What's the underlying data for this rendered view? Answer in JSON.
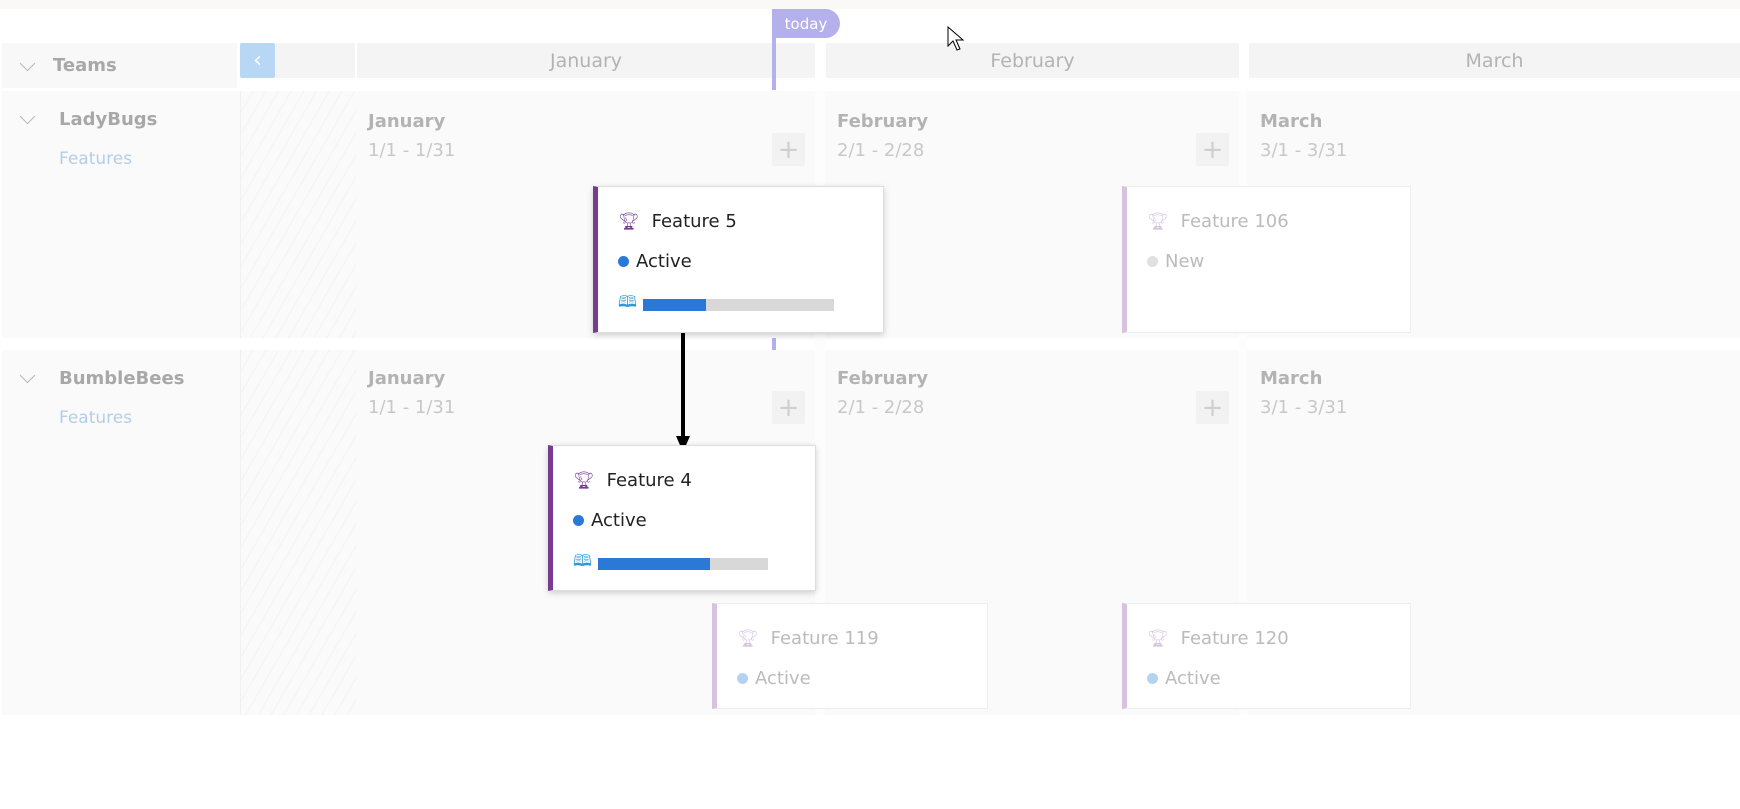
{
  "header": {
    "teams_label": "Teams",
    "today_label": "today",
    "months": [
      "January",
      "February",
      "March"
    ]
  },
  "teams": [
    {
      "name": "LadyBugs",
      "link": "Features",
      "months": [
        {
          "name": "January",
          "range": "1/1 - 1/31"
        },
        {
          "name": "February",
          "range": "2/1 - 2/28"
        },
        {
          "name": "March",
          "range": "3/1 - 3/31"
        }
      ]
    },
    {
      "name": "BumbleBees",
      "link": "Features",
      "months": [
        {
          "name": "January",
          "range": "1/1 - 1/31"
        },
        {
          "name": "February",
          "range": "2/1 - 2/28"
        },
        {
          "name": "March",
          "range": "3/1 - 3/31"
        }
      ]
    }
  ],
  "cards": [
    {
      "title": "Feature 5",
      "state": "Active",
      "state_color": "#2b79d6",
      "progress": 33
    },
    {
      "title": "Feature 106",
      "state": "New",
      "state_color": "#e0e0e0"
    },
    {
      "title": "Feature 4",
      "state": "Active",
      "state_color": "#2b79d6",
      "progress": 66
    },
    {
      "title": "Feature 119",
      "state": "Active",
      "state_color": "#b4d3f0"
    },
    {
      "title": "Feature 120",
      "state": "Active",
      "state_color": "#b4d3f0"
    }
  ],
  "colors": {
    "accent": "#773b93",
    "today": "#b4b0ec",
    "progress": "#2b79d6"
  }
}
